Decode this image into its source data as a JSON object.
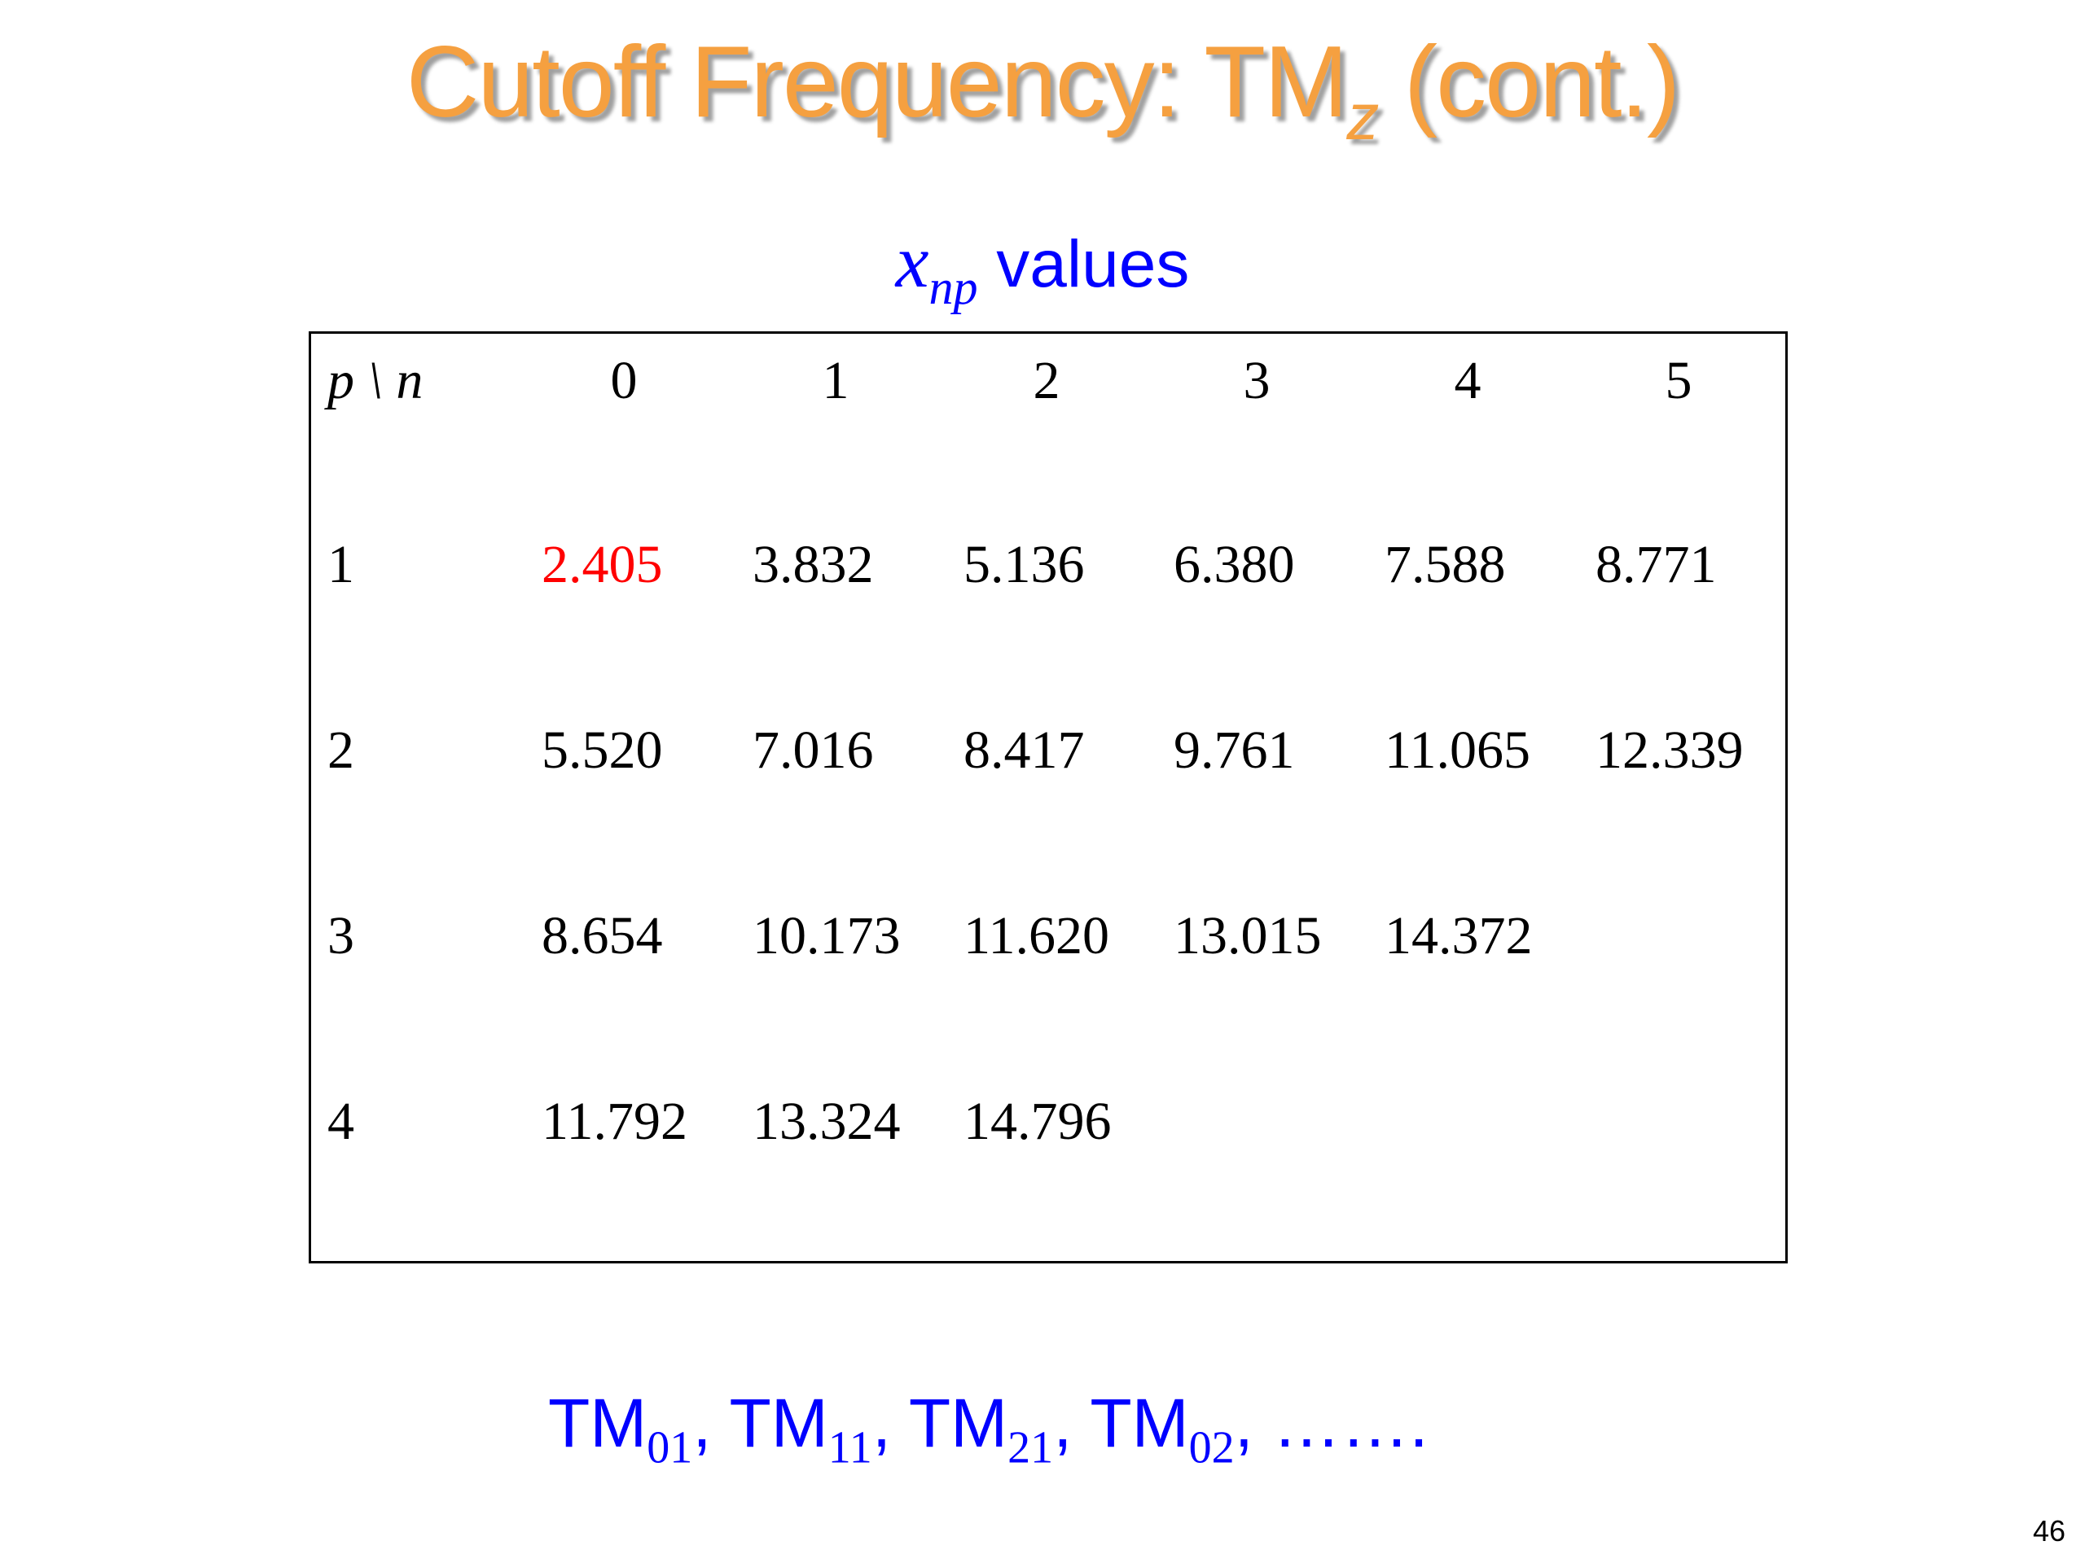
{
  "title": {
    "main": "Cutoff Frequency: TM",
    "sub": "z",
    "rest": " (cont.)"
  },
  "caption": {
    "var": "x",
    "sub": "np",
    "rest": " values"
  },
  "table": {
    "corner": "p \\ n",
    "columns": [
      "0",
      "1",
      "2",
      "3",
      "4",
      "5"
    ],
    "rows": [
      {
        "label": "1",
        "cells": [
          "2.405",
          "3.832",
          "5.136",
          "6.380",
          "7.588",
          "8.771"
        ]
      },
      {
        "label": "2",
        "cells": [
          "5.520",
          "7.016",
          "8.417",
          "9.761",
          "11.065",
          "12.339"
        ]
      },
      {
        "label": "3",
        "cells": [
          "8.654",
          "10.173",
          "11.620",
          "13.015",
          "14.372"
        ]
      },
      {
        "label": "4",
        "cells": [
          "11.792",
          "13.324",
          "14.796"
        ]
      }
    ],
    "highlight_cell": {
      "row": 0,
      "col": 0
    },
    "highlight_color": "#ff0000"
  },
  "modes": {
    "items": [
      {
        "base": "TM",
        "sub": "01"
      },
      {
        "base": "TM",
        "sub": "11"
      },
      {
        "base": "TM",
        "sub": "21"
      },
      {
        "base": "TM",
        "sub": "02"
      }
    ],
    "separator": ", ",
    "ellipsis": "……."
  },
  "page_number": "46"
}
